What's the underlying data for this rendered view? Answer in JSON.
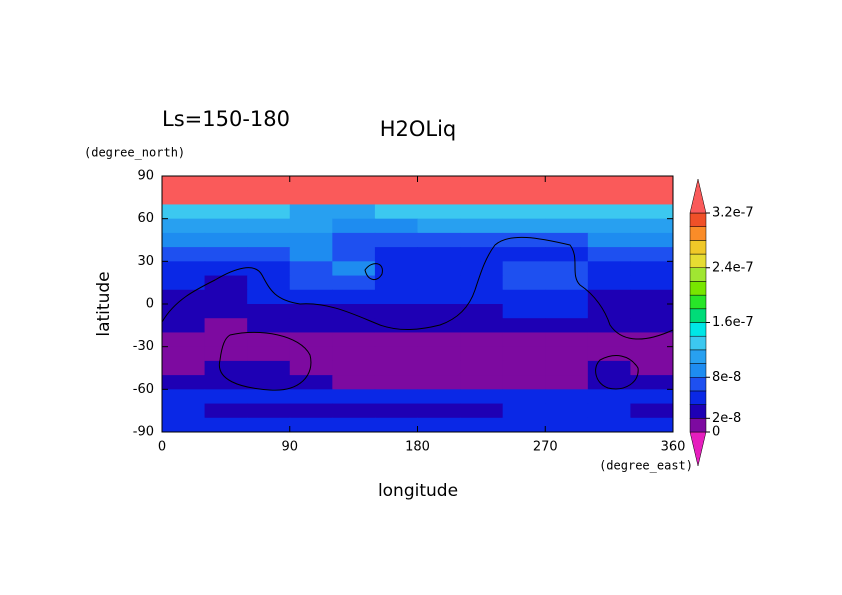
{
  "chart_data": {
    "type": "contour",
    "title": "H2OLiq",
    "subtitle": "Ls=150-180",
    "x_label": "longitude",
    "y_label": "latitude",
    "x_unit": "(degree_east)",
    "y_unit": "(degree_north)",
    "xlim": [
      0,
      360
    ],
    "ylim": [
      -90,
      90
    ],
    "xticks": [
      0,
      90,
      180,
      270,
      360
    ],
    "yticks": [
      90,
      60,
      30,
      0,
      -30,
      -60,
      -90
    ],
    "x": [
      15,
      45,
      75,
      105,
      135,
      165,
      195,
      225,
      255,
      285,
      315,
      345
    ],
    "y": [
      85,
      75,
      65,
      55,
      45,
      35,
      25,
      15,
      5,
      -5,
      -15,
      -25,
      -35,
      -45,
      -55,
      -65,
      -75,
      -85
    ],
    "z": [
      [
        3.3e-07,
        3.3e-07,
        3.3e-07,
        3.3e-07,
        3.3e-07,
        3.3e-07,
        3.3e-07,
        3.3e-07,
        3.3e-07,
        3.3e-07,
        3.3e-07,
        3.3e-07
      ],
      [
        3.3e-07,
        3.3e-07,
        3.3e-07,
        3.3e-07,
        3.3e-07,
        3.3e-07,
        3.3e-07,
        3.3e-07,
        3.3e-07,
        3.3e-07,
        3.3e-07,
        3.3e-07
      ],
      [
        1.3e-07,
        1.2e-07,
        1.2e-07,
        1.1e-07,
        1.1e-07,
        1.2e-07,
        1.2e-07,
        1.2e-07,
        1.3e-07,
        1.3e-07,
        1.3e-07,
        1.3e-07
      ],
      [
        1.1e-07,
        1e-07,
        1e-07,
        1e-07,
        9e-08,
        9e-08,
        1e-07,
        1e-07,
        1e-07,
        1.1e-07,
        1.1e-07,
        1.1e-07
      ],
      [
        9e-08,
        9e-08,
        9e-08,
        9e-08,
        7e-08,
        7e-08,
        7e-08,
        6e-08,
        7e-08,
        7e-08,
        9e-08,
        9e-08
      ],
      [
        7e-08,
        7e-08,
        7e-08,
        9e-08,
        7e-08,
        5e-08,
        5e-08,
        5e-08,
        5e-08,
        5e-08,
        7e-08,
        7e-08
      ],
      [
        5e-08,
        5e-08,
        5e-08,
        7e-08,
        9e-08,
        5e-08,
        5e-08,
        5e-08,
        7e-08,
        7e-08,
        5e-08,
        5e-08
      ],
      [
        5e-08,
        3e-08,
        5e-08,
        7e-08,
        7e-08,
        5e-08,
        5e-08,
        5e-08,
        7e-08,
        7e-08,
        5e-08,
        5e-08
      ],
      [
        3e-08,
        3e-08,
        5e-08,
        5e-08,
        5e-08,
        5e-08,
        5e-08,
        5e-08,
        5e-08,
        5e-08,
        3e-08,
        3e-08
      ],
      [
        3e-08,
        3e-08,
        3e-08,
        3e-08,
        3e-08,
        3e-08,
        3e-08,
        3e-08,
        5e-08,
        5e-08,
        3e-08,
        3e-08
      ],
      [
        3e-08,
        1e-08,
        3e-08,
        3e-08,
        3e-08,
        3e-08,
        3e-08,
        3e-08,
        3e-08,
        3e-08,
        3e-08,
        3e-08
      ],
      [
        1e-08,
        1e-08,
        1e-08,
        1e-08,
        1e-08,
        1e-08,
        1e-08,
        1e-08,
        1e-08,
        1e-08,
        1e-08,
        1e-08
      ],
      [
        1e-08,
        1e-08,
        1e-08,
        1e-08,
        1e-08,
        1e-08,
        1e-08,
        1e-08,
        1e-08,
        1e-08,
        1e-08,
        1e-08
      ],
      [
        1e-08,
        3e-08,
        3e-08,
        1e-08,
        1e-08,
        1e-08,
        1e-08,
        1e-08,
        1e-08,
        1e-08,
        3e-08,
        1e-08
      ],
      [
        3e-08,
        3e-08,
        3e-08,
        3e-08,
        1e-08,
        1e-08,
        1e-08,
        1e-08,
        1e-08,
        1e-08,
        3e-08,
        3e-08
      ],
      [
        5e-08,
        5e-08,
        5e-08,
        5e-08,
        5e-08,
        5e-08,
        5e-08,
        5e-08,
        5e-08,
        5e-08,
        5e-08,
        5e-08
      ],
      [
        5e-08,
        3e-08,
        3e-08,
        3e-08,
        3e-08,
        3e-08,
        3e-08,
        3e-08,
        5e-08,
        5e-08,
        5e-08,
        3e-08
      ],
      [
        5e-08,
        5e-08,
        5e-08,
        5e-08,
        5e-08,
        5e-08,
        5e-08,
        5e-08,
        5e-08,
        5e-08,
        5e-08,
        5e-08
      ]
    ],
    "levels": [
      0,
      2e-08,
      4e-08,
      6e-08,
      8e-08,
      1e-07,
      1.2e-07,
      1.4e-07,
      1.6e-07,
      1.8e-07,
      2e-07,
      2.2e-07,
      2.4e-07,
      2.6e-07,
      2.8e-07,
      3e-07,
      3.2e-07
    ],
    "colors": [
      "#e61ebe",
      "#7d0aa0",
      "#1e00b4",
      "#0a28e6",
      "#1e50f0",
      "#1e8cf0",
      "#28a0f0",
      "#3cc8f0",
      "#00e6e6",
      "#00dc78",
      "#28e628",
      "#78e600",
      "#a0e632",
      "#e6dc32",
      "#f0c828",
      "#fa8c28",
      "#f05028",
      "#fa5a5a"
    ],
    "colorbar_ticks": [
      {
        "value": 0,
        "label": "0"
      },
      {
        "value": 2e-08,
        "label": "2e-8"
      },
      {
        "value": 8e-08,
        "label": "8e-8"
      },
      {
        "value": 1.6e-07,
        "label": "1.6e-7"
      },
      {
        "value": 2.4e-07,
        "label": "2.4e-7"
      },
      {
        "value": 3.2e-07,
        "label": "3.2e-7"
      }
    ]
  }
}
